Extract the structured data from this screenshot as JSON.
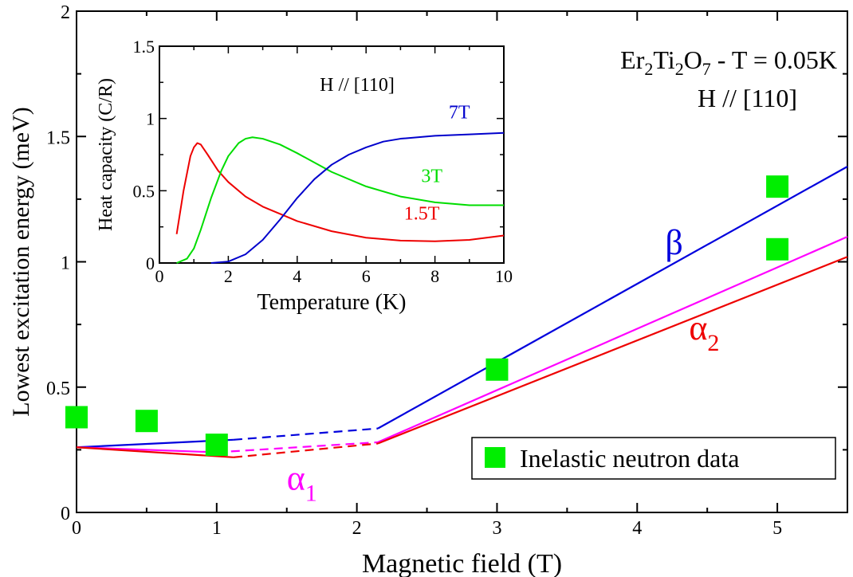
{
  "chart_data": {
    "main": {
      "type": "line",
      "title": "Er2Ti2O7 - T = 0.05K",
      "title_parts": [
        "Er",
        "2",
        "Ti",
        "2",
        "O",
        "7",
        " - T = 0.05K"
      ],
      "subtitle": "H // [110]",
      "xlabel": "Magnetic field (T)",
      "ylabel": "Lowest excitation energy (meV)",
      "xlim": [
        0,
        5.5
      ],
      "ylim": [
        0,
        2
      ],
      "xticks": [
        "0",
        "1",
        "2",
        "3",
        "4",
        "5"
      ],
      "yticks": [
        "0",
        "0.5",
        "1",
        "1.5",
        "2"
      ],
      "series": [
        {
          "name": "β",
          "color": "#0000dd",
          "solid": [
            [
              0,
              0.26
            ],
            [
              1.12,
              0.29
            ]
          ],
          "dashed": [
            [
              1.12,
              0.29
            ],
            [
              2.15,
              0.335
            ]
          ],
          "solid2": [
            [
              2.15,
              0.335
            ],
            [
              5.5,
              1.38
            ]
          ],
          "label": "β",
          "label_pos": [
            4.2,
            1.03
          ]
        },
        {
          "name": "α1",
          "color": "#ff00ff",
          "solid": [
            [
              0,
              0.26
            ],
            [
              1.0,
              0.24
            ]
          ],
          "dashed": [
            [
              1.0,
              0.24
            ],
            [
              2.15,
              0.28
            ]
          ],
          "solid2": [
            [
              2.15,
              0.28
            ],
            [
              5.5,
              1.1
            ]
          ],
          "label": "α",
          "label_sub": "1",
          "label_pos": [
            1.5,
            0.09
          ]
        },
        {
          "name": "α2",
          "color": "#ee0000",
          "solid": [
            [
              0,
              0.26
            ],
            [
              1.12,
              0.22
            ]
          ],
          "dashed": [
            [
              1.12,
              0.22
            ],
            [
              2.15,
              0.275
            ]
          ],
          "solid2": [
            [
              2.15,
              0.275
            ],
            [
              5.5,
              1.02
            ]
          ],
          "label": "α",
          "label_sub": "2",
          "label_pos": [
            4.37,
            0.69
          ]
        }
      ],
      "scatter": {
        "name": "Inelastic neutron data",
        "color": "#00ee00",
        "points": [
          [
            0,
            0.38
          ],
          [
            0.5,
            0.365
          ],
          [
            1,
            0.27
          ],
          [
            3,
            0.57
          ],
          [
            5,
            1.3
          ],
          [
            5,
            1.05
          ]
        ]
      },
      "legend": {
        "entries": [
          "Inelastic neutron data"
        ],
        "position": "bottom-right"
      }
    },
    "inset": {
      "type": "line",
      "annotation": "H // [110]",
      "xlabel": "Temperature (K)",
      "ylabel": "Heat capacity (C/R)",
      "xlim": [
        0,
        10
      ],
      "ylim": [
        0,
        1.5
      ],
      "xticks": [
        "0",
        "2",
        "4",
        "6",
        "8",
        "10"
      ],
      "yticks": [
        "0",
        "0.5",
        "1",
        "1.5"
      ],
      "series": [
        {
          "name": "1.5T",
          "color": "#ee0000",
          "label_pos": [
            7.1,
            0.3
          ],
          "x": [
            0.5,
            0.7,
            0.9,
            1.0,
            1.1,
            1.2,
            1.4,
            1.7,
            2.0,
            2.5,
            3.0,
            3.5,
            4.0,
            5.0,
            6.0,
            7.0,
            8.0,
            9.0,
            10.0
          ],
          "y": [
            0.2,
            0.5,
            0.74,
            0.8,
            0.83,
            0.82,
            0.75,
            0.64,
            0.56,
            0.46,
            0.39,
            0.34,
            0.29,
            0.22,
            0.175,
            0.155,
            0.15,
            0.16,
            0.19
          ]
        },
        {
          "name": "3T",
          "color": "#00dd00",
          "label_pos": [
            7.6,
            0.56
          ],
          "x": [
            0.5,
            0.8,
            1.0,
            1.2,
            1.5,
            1.8,
            2.0,
            2.3,
            2.5,
            2.7,
            3.0,
            3.5,
            4.0,
            5.0,
            6.0,
            7.0,
            8.0,
            9.0,
            10.0
          ],
          "y": [
            0.0,
            0.03,
            0.1,
            0.23,
            0.45,
            0.64,
            0.74,
            0.83,
            0.86,
            0.87,
            0.86,
            0.82,
            0.76,
            0.63,
            0.53,
            0.46,
            0.42,
            0.4,
            0.4
          ]
        },
        {
          "name": "7T",
          "color": "#0000cc",
          "label_pos": [
            8.4,
            1.0
          ],
          "x": [
            1.5,
            2.0,
            2.5,
            3.0,
            3.5,
            4.0,
            4.5,
            5.0,
            5.5,
            6.0,
            6.5,
            7.0,
            8.0,
            9.0,
            10.0
          ],
          "y": [
            0.0,
            0.01,
            0.06,
            0.16,
            0.3,
            0.45,
            0.58,
            0.68,
            0.75,
            0.8,
            0.84,
            0.86,
            0.88,
            0.89,
            0.9
          ]
        }
      ]
    }
  }
}
